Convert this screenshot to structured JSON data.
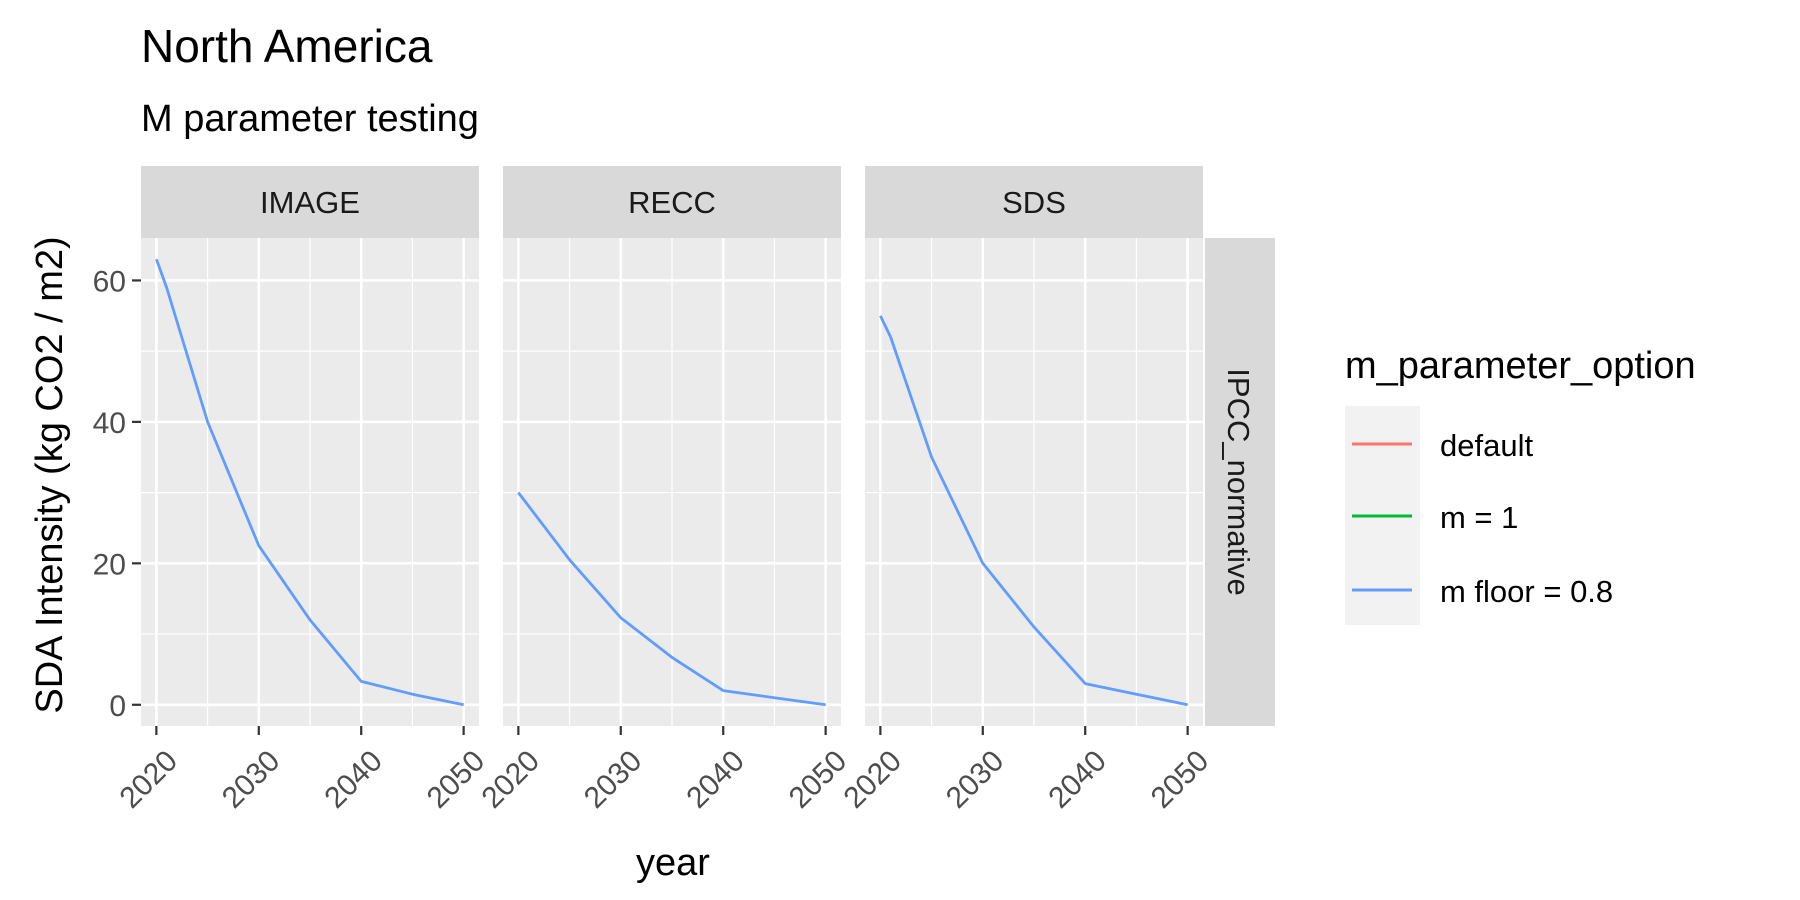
{
  "chart_data": {
    "type": "line",
    "title": "North America",
    "subtitle": "M parameter testing",
    "xlabel": "year",
    "ylabel": "SDA Intensity (kg CO2 / m2)",
    "xlim": [
      2018.5,
      2051.5
    ],
    "ylim": [
      -3,
      66
    ],
    "x_ticks": [
      2020,
      2030,
      2040,
      2050
    ],
    "y_ticks": [
      0,
      20,
      40,
      60
    ],
    "grid": true,
    "legend": {
      "title": "m_parameter_option",
      "position": "right",
      "entries": [
        {
          "label": "default",
          "color": "#F8766D"
        },
        {
          "label": "m = 1",
          "color": "#00BA38"
        },
        {
          "label": "m floor = 0.8",
          "color": "#619CFF"
        }
      ]
    },
    "facet_row_label": "IPCC_normative",
    "facets": [
      {
        "label": "IMAGE",
        "series": [
          {
            "name": "m floor = 0.8",
            "color": "#619CFF",
            "x": [
              2020,
              2021,
              2025,
              2030,
              2035,
              2040,
              2045,
              2050
            ],
            "y": [
              63,
              59,
              40,
              22.5,
              12,
              3.3,
              1.5,
              0
            ]
          }
        ]
      },
      {
        "label": "RECC",
        "series": [
          {
            "name": "m floor = 0.8",
            "color": "#619CFF",
            "x": [
              2020,
              2025,
              2030,
              2035,
              2040,
              2045,
              2050
            ],
            "y": [
              30,
              20.5,
              12.3,
              6.7,
              2,
              1,
              0
            ]
          }
        ]
      },
      {
        "label": "SDS",
        "series": [
          {
            "name": "m floor = 0.8",
            "color": "#619CFF",
            "x": [
              2020,
              2021,
              2025,
              2030,
              2035,
              2040,
              2045,
              2050
            ],
            "y": [
              55,
              52,
              35,
              20,
              11,
              3,
              1.5,
              0
            ]
          }
        ]
      }
    ]
  }
}
